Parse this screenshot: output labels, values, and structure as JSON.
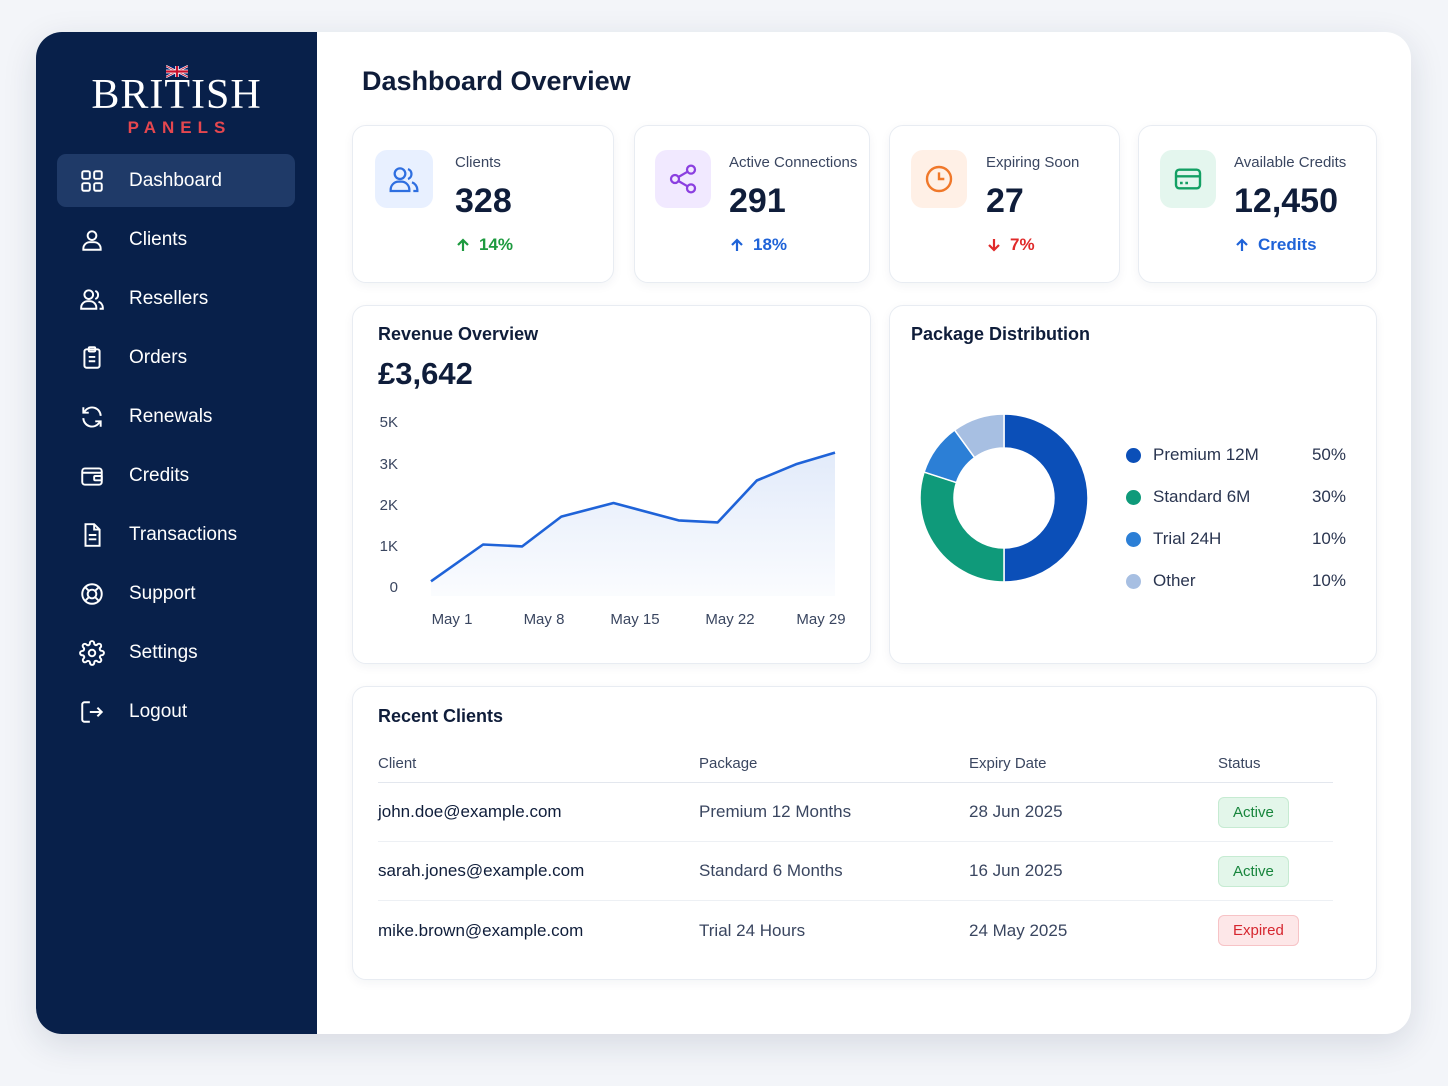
{
  "brand": {
    "name": "BRITISH",
    "sub": "PANELS"
  },
  "nav": [
    {
      "label": "Dashboard",
      "icon": "grid-icon",
      "active": true
    },
    {
      "label": "Clients",
      "icon": "user-icon"
    },
    {
      "label": "Resellers",
      "icon": "users-icon"
    },
    {
      "label": "Orders",
      "icon": "clipboard-icon"
    },
    {
      "label": "Renewals",
      "icon": "refresh-icon"
    },
    {
      "label": "Credits",
      "icon": "wallet-icon"
    },
    {
      "label": "Transactions",
      "icon": "file-icon"
    },
    {
      "label": "Support",
      "icon": "lifebuoy-icon"
    },
    {
      "label": "Settings",
      "icon": "gear-icon"
    },
    {
      "label": "Logout",
      "icon": "logout-icon"
    }
  ],
  "page_title": "Dashboard Overview",
  "stats": [
    {
      "label": "Clients",
      "value": "328",
      "delta": "14%",
      "direction": "up",
      "color": "#1d9a3f",
      "icon": "users-icon",
      "icon_color": "#2f6fe0",
      "icon_bg": "#e8f0ff"
    },
    {
      "label": "Active Connections",
      "value": "291",
      "delta": "18%",
      "direction": "up",
      "color": "#1f63d8",
      "icon": "share-icon",
      "icon_color": "#8b3fe0",
      "icon_bg": "#f1e9ff"
    },
    {
      "label": "Expiring Soon",
      "value": "27",
      "delta": "7%",
      "direction": "down",
      "color": "#e02a2a",
      "icon": "clock-icon",
      "icon_color": "#f0782a",
      "icon_bg": "#fff0e6"
    },
    {
      "label": "Available Credits",
      "value": "12,450",
      "delta": "Credits",
      "direction": "up",
      "color": "#1f63d8",
      "icon": "credit-card-icon",
      "icon_color": "#13a064",
      "icon_bg": "#e4f6ee"
    }
  ],
  "revenue": {
    "title": "Revenue Overview",
    "amount": "£3,642"
  },
  "packages": {
    "title": "Package Distribution"
  },
  "chart_data": [
    {
      "type": "area",
      "title": "Revenue Overview",
      "y_ticks": [
        "0",
        "1K",
        "2K",
        "3K",
        "5K"
      ],
      "x_ticks": [
        "May 1",
        "May 8",
        "May 15",
        "May 22",
        "May 29"
      ],
      "x": [
        1,
        5,
        8,
        11,
        15,
        20,
        23,
        26,
        29,
        32
      ],
      "y": [
        380,
        1330,
        1280,
        2050,
        2400,
        1950,
        1900,
        2980,
        3400,
        3700
      ],
      "ylim": [
        0,
        4000
      ],
      "grid": false,
      "color": "#1f63d8"
    },
    {
      "type": "pie",
      "title": "Package Distribution",
      "labels": [
        "Premium 12M",
        "Standard 6M",
        "Trial 24H",
        "Other"
      ],
      "values": [
        50,
        30,
        10,
        10
      ],
      "display": [
        "50%",
        "30%",
        "10%",
        "10%"
      ],
      "colors": [
        "#0b4fb8",
        "#0f9a7a",
        "#2c7fd6",
        "#a7bfe2"
      ],
      "legend": "right"
    }
  ],
  "recent": {
    "title": "Recent Clients",
    "columns": [
      "Client",
      "Package",
      "Expiry Date",
      "Status"
    ],
    "rows": [
      {
        "client": "john.doe@example.com",
        "package": "Premium 12 Months",
        "expiry": "28 Jun 2025",
        "status": "Active"
      },
      {
        "client": "sarah.jones@example.com",
        "package": "Standard 6 Months",
        "expiry": "16 Jun 2025",
        "status": "Active"
      },
      {
        "client": "mike.brown@example.com",
        "package": "Trial 24 Hours",
        "expiry": "24 May 2025",
        "status": "Expired"
      }
    ]
  }
}
